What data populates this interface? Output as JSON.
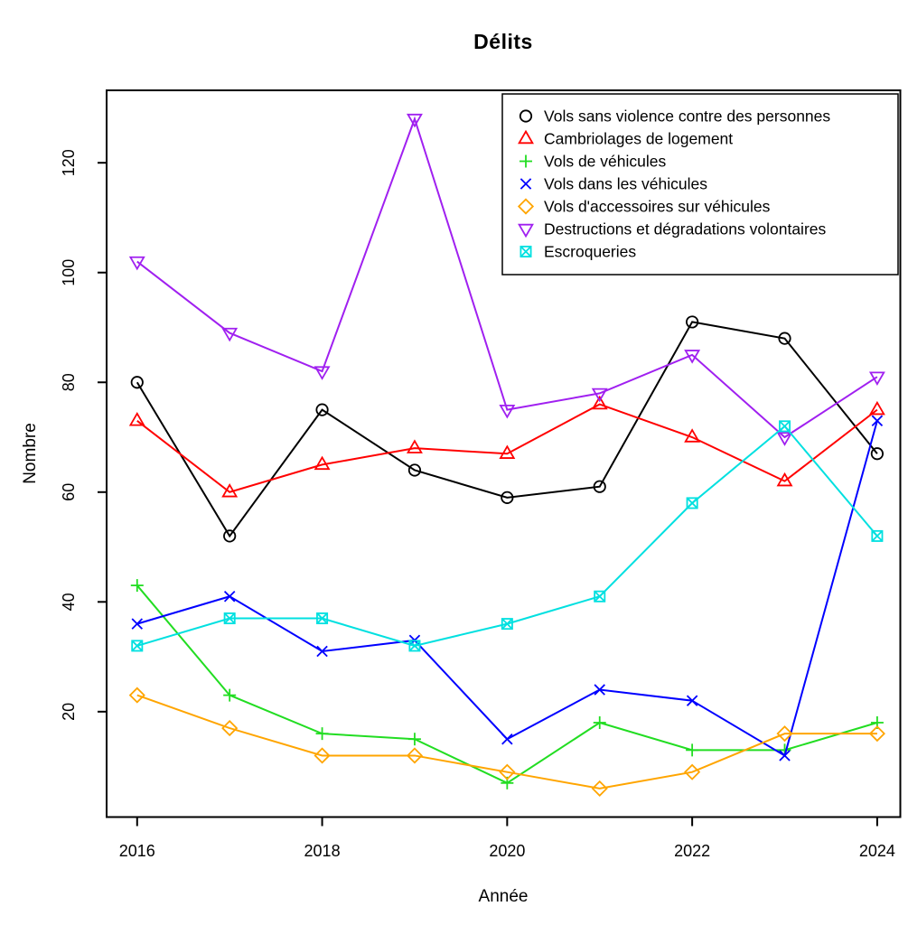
{
  "figure": {
    "title": "Délits",
    "xlabel": "Année",
    "ylabel": "Nombre"
  },
  "chart_data": {
    "type": "line",
    "title": "Délits",
    "xlabel": "Année",
    "ylabel": "Nombre",
    "x": [
      2016,
      2017,
      2018,
      2019,
      2020,
      2021,
      2022,
      2023,
      2024
    ],
    "x_ticks": [
      2016,
      2018,
      2020,
      2022,
      2024
    ],
    "y_ticks": [
      20,
      40,
      60,
      80,
      100,
      120
    ],
    "xlim": [
      2015.67,
      2024.25
    ],
    "ylim": [
      0.8,
      133.2
    ],
    "grid": false,
    "legend_position": "top-right",
    "series": [
      {
        "name": "Vols sans violence contre des personnes",
        "color": "#000000",
        "marker": "circle",
        "values": [
          80,
          52,
          75,
          64,
          59,
          61,
          91,
          88,
          67
        ]
      },
      {
        "name": "Cambriolages de logement",
        "color": "#FF0000",
        "marker": "triangle-up",
        "values": [
          73,
          60,
          65,
          68,
          67,
          76,
          70,
          62,
          75
        ]
      },
      {
        "name": "Vols de véhicules",
        "color": "#22DD22",
        "marker": "plus",
        "values": [
          43,
          23,
          16,
          15,
          7,
          18,
          13,
          13,
          18
        ]
      },
      {
        "name": "Vols dans les véhicules",
        "color": "#0000FF",
        "marker": "x",
        "values": [
          36,
          41,
          31,
          33,
          15,
          24,
          22,
          12,
          73
        ]
      },
      {
        "name": "Vols d'accessoires sur véhicules",
        "color": "#FFA500",
        "marker": "diamond",
        "values": [
          23,
          17,
          12,
          12,
          9,
          6,
          9,
          16,
          16
        ]
      },
      {
        "name": "Destructions et dégradations volontaires",
        "color": "#A020F0",
        "marker": "triangle-down",
        "values": [
          102,
          89,
          82,
          128,
          75,
          78,
          85,
          70,
          81
        ]
      },
      {
        "name": "Escroqueries",
        "color": "#00E0E0",
        "marker": "square-x",
        "values": [
          32,
          37,
          37,
          32,
          36,
          41,
          58,
          72,
          52
        ]
      }
    ]
  }
}
